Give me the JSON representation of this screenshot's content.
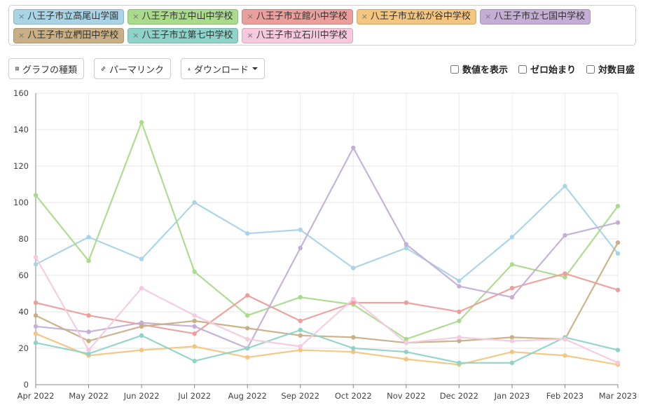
{
  "legend": [
    {
      "label": "八王子市立高尾山学園",
      "color": "#a8d4e6"
    },
    {
      "label": "八王子市立中山中学校",
      "color": "#a9db8a"
    },
    {
      "label": "八王子市立館小中学校",
      "color": "#eb9f9c"
    },
    {
      "label": "八王子市立松が谷中学校",
      "color": "#f3c57f"
    },
    {
      "label": "八王子市立七国中学校",
      "color": "#c4aed6"
    },
    {
      "label": "八王子市立椚田中学校",
      "color": "#c9af86"
    },
    {
      "label": "八王子市立第七中学校",
      "color": "#8fd3c8"
    },
    {
      "label": "八王子市立石川中学校",
      "color": "#f6c9de"
    }
  ],
  "legend_close_symbol": "×",
  "toolbar": {
    "chart_type_label": "グラフの種類",
    "permalink_label": "パーマリンク",
    "download_label": "ダウンロード"
  },
  "options": {
    "show_values": "数値を表示",
    "zero_start": "ゼロ始まり",
    "log_scale": "対数目盛"
  },
  "chart_data": {
    "type": "line",
    "x": [
      "Apr 2022",
      "May 2022",
      "Jun 2022",
      "Jul 2022",
      "Aug 2022",
      "Sep 2022",
      "Oct 2022",
      "Nov 2022",
      "Dec 2022",
      "Jan 2023",
      "Feb 2023",
      "Mar 2023"
    ],
    "ylim": [
      0,
      160
    ],
    "yticks": [
      0,
      20,
      40,
      60,
      80,
      100,
      120,
      140,
      160
    ],
    "grid": true,
    "series": [
      {
        "name": "八王子市立高尾山学園",
        "color": "#a8d4e6",
        "values": [
          66,
          81,
          69,
          100,
          83,
          85,
          64,
          75,
          57,
          81,
          109,
          72
        ]
      },
      {
        "name": "八王子市立中山中学校",
        "color": "#a9db8a",
        "values": [
          104,
          68,
          144,
          62,
          38,
          48,
          44,
          25,
          35,
          66,
          59,
          98
        ]
      },
      {
        "name": "八王子市立館小中学校",
        "color": "#eb9f9c",
        "values": [
          45,
          38,
          33,
          28,
          49,
          35,
          45,
          45,
          40,
          53,
          61,
          52
        ]
      },
      {
        "name": "八王子市立松が谷中学校",
        "color": "#f3c57f",
        "values": [
          28,
          16,
          19,
          21,
          15,
          19,
          18,
          14,
          11,
          18,
          16,
          11
        ]
      },
      {
        "name": "八王子市立七国中学校",
        "color": "#c4aed6",
        "values": [
          32,
          29,
          34,
          32,
          20,
          75,
          130,
          77,
          54,
          48,
          82,
          89
        ]
      },
      {
        "name": "八王子市立椚田中学校",
        "color": "#c9af86",
        "values": [
          38,
          24,
          32,
          35,
          31,
          27,
          26,
          23,
          24,
          26,
          25,
          78
        ]
      },
      {
        "name": "八王子市立第七中学校",
        "color": "#8fd3c8",
        "values": [
          23,
          17,
          27,
          13,
          20,
          30,
          20,
          18,
          12,
          12,
          26,
          19
        ]
      },
      {
        "name": "八王子市立石川中学校",
        "color": "#f6c9de",
        "values": [
          70,
          19,
          53,
          38,
          25,
          21,
          47,
          23,
          26,
          24,
          25,
          12
        ]
      }
    ]
  }
}
